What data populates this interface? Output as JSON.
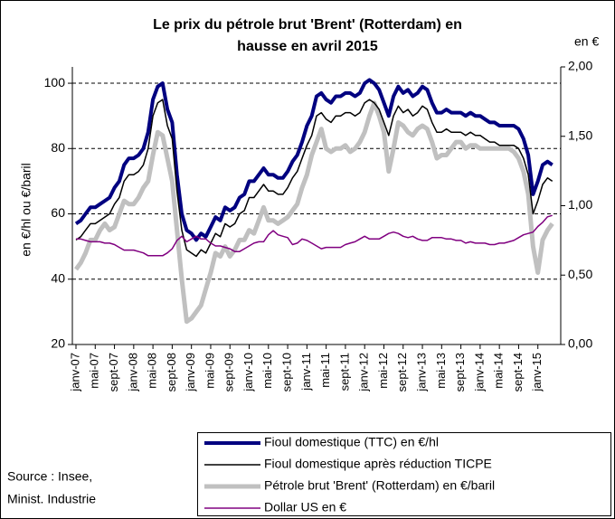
{
  "chart_data": {
    "type": "line",
    "title": [
      "Le prix du pétrole brut 'Brent' (Rotterdam) en",
      "hausse en avril 2015"
    ],
    "y_label": "en €/hl ou €/baril",
    "y2_label": "en €",
    "source": [
      "Source : Insee,",
      "Minist. Industrie"
    ],
    "categories": [
      "janv-07",
      null,
      null,
      null,
      "mai-07",
      null,
      null,
      null,
      "sept-07",
      null,
      null,
      null,
      "janv-08",
      null,
      null,
      null,
      "mai-08",
      null,
      null,
      null,
      "sept-08",
      null,
      null,
      null,
      "janv-09",
      null,
      null,
      null,
      "mai-09",
      null,
      null,
      null,
      "sept-09",
      null,
      null,
      null,
      "janv-10",
      null,
      null,
      null,
      "mai-10",
      null,
      null,
      null,
      "sept-10",
      null,
      null,
      null,
      "janv-11",
      null,
      null,
      null,
      "mai-11",
      null,
      null,
      null,
      "sept-11",
      null,
      null,
      null,
      "janv-12",
      null,
      null,
      null,
      "mai-12",
      null,
      null,
      null,
      "sept-12",
      null,
      null,
      null,
      "janv-13",
      null,
      null,
      null,
      "mai-13",
      null,
      null,
      null,
      "sept-13",
      null,
      null,
      null,
      "janv-14",
      null,
      null,
      null,
      "mai-14",
      null,
      null,
      null,
      "sept-14",
      null,
      null,
      null,
      "janv-15",
      null,
      null,
      null
    ],
    "ylim": [
      20,
      105
    ],
    "yticks": [
      20,
      40,
      60,
      80,
      100
    ],
    "y2lim": [
      0,
      2
    ],
    "y2ticks": [
      {
        "value": 0,
        "label": "0,00"
      },
      {
        "value": 0.5,
        "label": "0,50"
      },
      {
        "value": 1,
        "label": "1,00"
      },
      {
        "value": 1.5,
        "label": "1,50"
      },
      {
        "value": 2,
        "label": "2,00"
      }
    ],
    "grid": true,
    "legend": "bottom-right",
    "series": [
      {
        "name": "Fioul domestique (TTC) en €/hl",
        "color": "#000080",
        "values": [
          57,
          58,
          60,
          62,
          62,
          63,
          64,
          65,
          68,
          70,
          75,
          77,
          77,
          78,
          80,
          85,
          95,
          99,
          100,
          92,
          88,
          72,
          60,
          55,
          54,
          52,
          54,
          53,
          56,
          59,
          58,
          62,
          61,
          62,
          65,
          66,
          70,
          70,
          72,
          74,
          72,
          72,
          71,
          71,
          73,
          76,
          78,
          82,
          87,
          90,
          96,
          97,
          95,
          94,
          96,
          96,
          97,
          97,
          96,
          97,
          100,
          101,
          100,
          98,
          94,
          90,
          96,
          99,
          97,
          98,
          96,
          97,
          99,
          98,
          94,
          91,
          91,
          92,
          91,
          91,
          91,
          90,
          91,
          90,
          90,
          89,
          88,
          88,
          87,
          87,
          87,
          87,
          86,
          83,
          78,
          66,
          70,
          75,
          76,
          75
        ]
      },
      {
        "name": "Fioul domestique après réduction TICPE",
        "color": "#000000",
        "values": [
          52,
          53,
          55,
          57,
          57,
          58,
          59,
          60,
          63,
          65,
          70,
          72,
          72,
          73,
          75,
          80,
          90,
          94,
          95,
          87,
          83,
          67,
          55,
          49,
          48,
          47,
          49,
          48,
          51,
          54,
          53,
          57,
          56,
          57,
          60,
          61,
          65,
          65,
          67,
          69,
          67,
          67,
          66,
          66,
          68,
          71,
          73,
          77,
          81,
          84,
          90,
          91,
          89,
          88,
          90,
          90,
          91,
          91,
          90,
          91,
          94,
          95,
          94,
          92,
          88,
          84,
          90,
          93,
          91,
          92,
          90,
          91,
          93,
          92,
          88,
          85,
          85,
          86,
          85,
          85,
          85,
          84,
          85,
          84,
          84,
          83,
          82,
          82,
          81,
          81,
          81,
          81,
          80,
          77,
          72,
          60,
          64,
          69,
          71,
          70
        ]
      },
      {
        "name": "Pétrole brut 'Brent' (Rotterdam) en €/baril",
        "color": "#c0c0c0",
        "values": [
          43,
          45,
          48,
          52,
          52,
          55,
          57,
          55,
          56,
          60,
          64,
          63,
          63,
          65,
          68,
          70,
          78,
          85,
          84,
          77,
          70,
          55,
          40,
          27,
          28,
          30,
          32,
          37,
          42,
          48,
          47,
          50,
          47,
          49,
          52,
          52,
          55,
          54,
          58,
          62,
          58,
          58,
          57,
          58,
          59,
          61,
          63,
          68,
          72,
          78,
          82,
          86,
          80,
          79,
          80,
          80,
          81,
          79,
          80,
          82,
          85,
          90,
          94,
          90,
          85,
          73,
          80,
          88,
          87,
          85,
          84,
          86,
          87,
          86,
          82,
          77,
          78,
          78,
          80,
          82,
          82,
          80,
          81,
          81,
          80,
          80,
          80,
          80,
          80,
          80,
          80,
          79,
          77,
          73,
          66,
          50,
          42,
          52,
          55,
          57
        ]
      },
      {
        "name": "Dollar US en €",
        "color": "#800080",
        "axis": "y2",
        "values": [
          0.76,
          0.76,
          0.75,
          0.74,
          0.74,
          0.74,
          0.73,
          0.73,
          0.72,
          0.7,
          0.68,
          0.68,
          0.68,
          0.67,
          0.66,
          0.64,
          0.64,
          0.64,
          0.64,
          0.66,
          0.69,
          0.75,
          0.78,
          0.74,
          0.76,
          0.78,
          0.76,
          0.76,
          0.73,
          0.71,
          0.71,
          0.7,
          0.69,
          0.67,
          0.67,
          0.69,
          0.71,
          0.73,
          0.74,
          0.74,
          0.79,
          0.82,
          0.79,
          0.78,
          0.77,
          0.72,
          0.73,
          0.76,
          0.75,
          0.73,
          0.71,
          0.69,
          0.7,
          0.7,
          0.7,
          0.7,
          0.72,
          0.73,
          0.74,
          0.76,
          0.78,
          0.76,
          0.76,
          0.76,
          0.78,
          0.8,
          0.81,
          0.8,
          0.78,
          0.77,
          0.78,
          0.76,
          0.75,
          0.75,
          0.77,
          0.77,
          0.77,
          0.76,
          0.76,
          0.75,
          0.75,
          0.73,
          0.74,
          0.73,
          0.73,
          0.73,
          0.72,
          0.72,
          0.73,
          0.73,
          0.74,
          0.75,
          0.77,
          0.79,
          0.8,
          0.81,
          0.85,
          0.88,
          0.92,
          0.93
        ]
      }
    ]
  }
}
